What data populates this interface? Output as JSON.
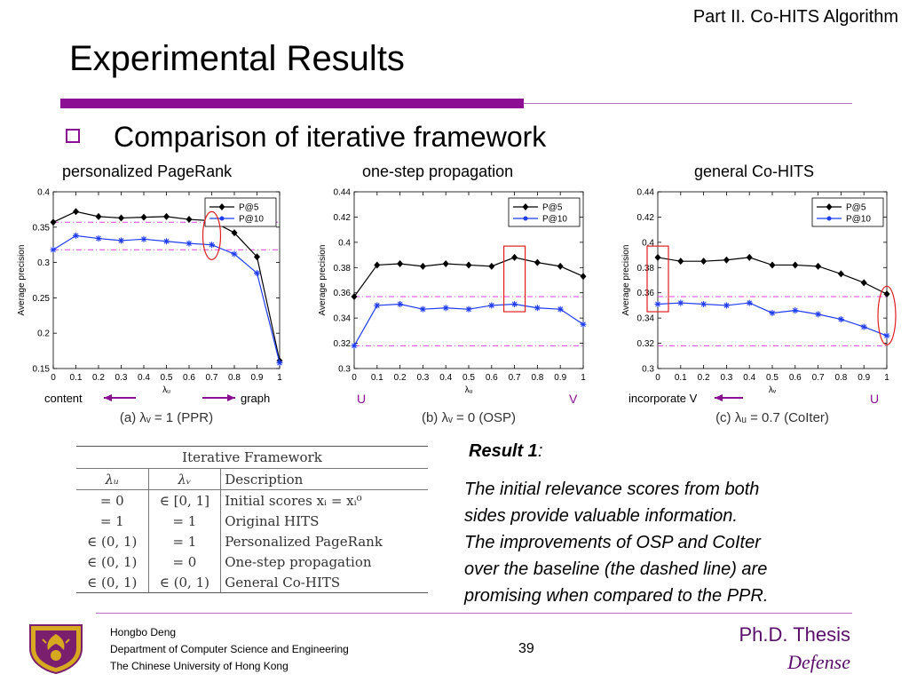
{
  "header": {
    "part_title": "Part II. Co-HITS Algorithm",
    "title": "Experimental Results",
    "bullet": "Comparison of iterative framework"
  },
  "colors": {
    "accent": "#8B0E93",
    "thin_rule": "#B872BE",
    "thesis": "#5A0E69",
    "p5": "#000000",
    "p10": "#1F3CF0",
    "baseline": "#E040E0",
    "highlight": "#E02020"
  },
  "chart_data": [
    {
      "type": "line",
      "caption": "personalized PageRank",
      "subcaption": "(a) λᵥ = 1 (PPR)",
      "xlabel": "λᵤ",
      "ylabel": "Average precision",
      "x": [
        0,
        0.1,
        0.2,
        0.3,
        0.4,
        0.5,
        0.6,
        0.7,
        0.8,
        0.9,
        1
      ],
      "x_ticks": [
        "0",
        "0.1",
        "0.2",
        "0.3",
        "0.4",
        "0.5",
        "0.6",
        "0.7",
        "0.8",
        "0.9",
        "1"
      ],
      "ylim": [
        0.15,
        0.4
      ],
      "y_ticks": [
        0.15,
        0.2,
        0.25,
        0.3,
        0.35,
        0.4
      ],
      "y_tick_labels": [
        "0.15",
        "0.2",
        "0.25",
        "0.3",
        "0.35",
        "0.4"
      ],
      "series": [
        {
          "name": "P@5",
          "values": [
            0.357,
            0.372,
            0.365,
            0.363,
            0.364,
            0.365,
            0.361,
            0.359,
            0.342,
            0.308,
            0.161
          ]
        },
        {
          "name": "P@10",
          "values": [
            0.318,
            0.338,
            0.334,
            0.331,
            0.333,
            0.33,
            0.327,
            0.325,
            0.312,
            0.285,
            0.158
          ]
        }
      ],
      "baselines": [
        0.357,
        0.318
      ],
      "highlight": {
        "shape": "ellipse",
        "x": 0.7
      },
      "legend": "top-right",
      "annotations": {
        "left": "content",
        "right": "graph"
      }
    },
    {
      "type": "line",
      "caption": "one-step propagation",
      "subcaption": "(b) λᵥ = 0 (OSP)",
      "xlabel": "λᵤ",
      "ylabel": "Average precision",
      "x": [
        0,
        0.1,
        0.2,
        0.3,
        0.4,
        0.5,
        0.6,
        0.7,
        0.8,
        0.9,
        1
      ],
      "x_ticks": [
        "0",
        "0.1",
        "0.2",
        "0.3",
        "0.4",
        "0.5",
        "0.6",
        "0.7",
        "0.8",
        "0.9",
        "1"
      ],
      "ylim": [
        0.3,
        0.44
      ],
      "y_ticks": [
        0.3,
        0.32,
        0.34,
        0.36,
        0.38,
        0.4,
        0.42,
        0.44
      ],
      "y_tick_labels": [
        "0.3",
        "0.32",
        "0.34",
        "0.36",
        "0.38",
        "0.4",
        "0.42",
        "0.44"
      ],
      "series": [
        {
          "name": "P@5",
          "values": [
            0.357,
            0.382,
            0.383,
            0.381,
            0.383,
            0.382,
            0.381,
            0.388,
            0.384,
            0.381,
            0.373
          ]
        },
        {
          "name": "P@10",
          "values": [
            0.318,
            0.35,
            0.351,
            0.347,
            0.348,
            0.347,
            0.35,
            0.351,
            0.348,
            0.347,
            0.335
          ]
        }
      ],
      "baselines": [
        0.357,
        0.318
      ],
      "highlight": {
        "shape": "rect",
        "x": 0.7
      },
      "legend": "top-right",
      "annotations": {
        "left": "U",
        "right": "V"
      }
    },
    {
      "type": "line",
      "caption": "general Co-HITS",
      "subcaption": "(c) λᵤ = 0.7 (CoIter)",
      "xlabel": "λᵥ",
      "ylabel": "Average precision",
      "x": [
        0,
        0.1,
        0.2,
        0.3,
        0.4,
        0.5,
        0.6,
        0.7,
        0.8,
        0.9,
        1
      ],
      "x_ticks": [
        "0",
        "0.1",
        "0.2",
        "0.3",
        "0.4",
        "0.5",
        "0.6",
        "0.7",
        "0.8",
        "0.9",
        "1"
      ],
      "ylim": [
        0.3,
        0.44
      ],
      "y_ticks": [
        0.3,
        0.32,
        0.34,
        0.36,
        0.38,
        0.4,
        0.42,
        0.44
      ],
      "y_tick_labels": [
        "0.3",
        "0.32",
        "0.34",
        "0.36",
        "0.38",
        "0.4",
        "0.42",
        "0.44"
      ],
      "series": [
        {
          "name": "P@5",
          "values": [
            0.388,
            0.385,
            0.385,
            0.386,
            0.388,
            0.382,
            0.382,
            0.381,
            0.375,
            0.368,
            0.359
          ]
        },
        {
          "name": "P@10",
          "values": [
            0.351,
            0.352,
            0.351,
            0.35,
            0.352,
            0.344,
            0.346,
            0.343,
            0.339,
            0.333,
            0.326
          ]
        }
      ],
      "baselines": [
        0.357,
        0.318
      ],
      "highlights": [
        {
          "shape": "rect",
          "x": 0
        },
        {
          "shape": "ellipse",
          "x": 1
        }
      ],
      "legend": "top-right",
      "annotations": {
        "left": "incorporate V",
        "right": "U"
      }
    }
  ],
  "table": {
    "caption": "Iterative Framework",
    "headers": [
      "λᵤ",
      "λᵥ",
      "Description"
    ],
    "rows": [
      [
        "= 0",
        "∈ [0, 1]",
        "Initial scores xᵢ = xᵢ⁰"
      ],
      [
        "= 1",
        "= 1",
        "Original HITS"
      ],
      [
        "∈ (0, 1)",
        "= 1",
        "Personalized PageRank"
      ],
      [
        "∈ (0, 1)",
        "= 0",
        "One-step propagation"
      ],
      [
        "∈ (0, 1)",
        "∈ (0, 1)",
        "General Co-HITS"
      ]
    ]
  },
  "result": {
    "title": "Result 1",
    "colon": ":",
    "lines": [
      "The initial relevance scores from both",
      "sides provide valuable information.",
      "The improvements of OSP and CoIter",
      "over the baseline (the dashed line) are",
      "promising when compared to the PPR."
    ]
  },
  "footer": {
    "author": "Hongbo Deng",
    "department": "Department of Computer Science and Engineering",
    "university": "The Chinese University of Hong Kong",
    "page": "39",
    "thesis_line1": "Ph.D. Thesis",
    "thesis_line2": "Defense"
  }
}
